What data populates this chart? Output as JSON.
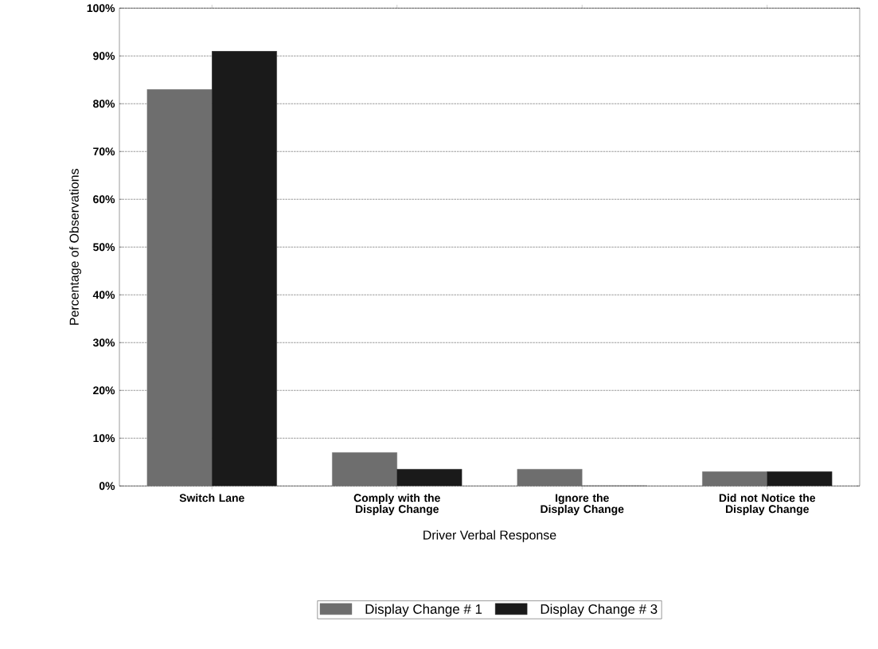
{
  "chart_data": {
    "type": "bar",
    "xlabel": "Driver Verbal Response",
    "ylabel": "Percentage of Observations",
    "categories": [
      "Switch Lane",
      "Comply with the Display Change",
      "Ignore the Display Change",
      "Did not Notice the Display Change"
    ],
    "series": [
      {
        "name": "Display Change # 1",
        "color": "#6e6e6e",
        "values": [
          83,
          7,
          3.5,
          3
        ]
      },
      {
        "name": "Display Change # 3",
        "color": "#1a1a1a",
        "values": [
          91,
          3.5,
          0,
          3
        ]
      }
    ],
    "ylim": [
      0,
      100
    ],
    "yticks": [
      {
        "value": 0,
        "label": "0%"
      },
      {
        "value": 10,
        "label": "10%"
      },
      {
        "value": 20,
        "label": "20%"
      },
      {
        "value": 30,
        "label": "30%"
      },
      {
        "value": 40,
        "label": "40%"
      },
      {
        "value": 50,
        "label": "50%"
      },
      {
        "value": 60,
        "label": "60%"
      },
      {
        "value": 70,
        "label": "70%"
      },
      {
        "value": 80,
        "label": "80%"
      },
      {
        "value": 90,
        "label": "90%"
      },
      {
        "value": 100,
        "label": "100%"
      }
    ],
    "grid": "y",
    "legend": "bottom"
  }
}
